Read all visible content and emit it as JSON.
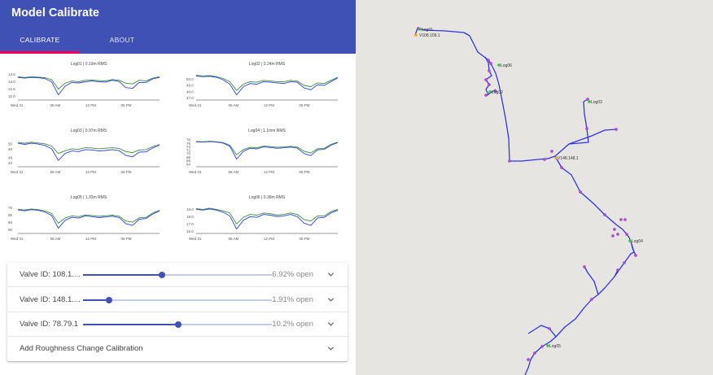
{
  "app": {
    "title": "Model Calibrate"
  },
  "tabs": [
    {
      "label": "CALIBRATE",
      "active": true
    },
    {
      "label": "ABOUT",
      "active": false
    }
  ],
  "colors": {
    "primary": "#3f51b5",
    "accent": "#f50057",
    "modelLine": "#2c3fe0",
    "loggerLine": "#3c8c3c",
    "pipe": "#3333e0",
    "junction": "#b84ce0",
    "loggerNode": "#34c240",
    "valveNode": "#f0a020"
  },
  "chart_data": [
    {
      "type": "line",
      "title": "Log01 | 0.19m RMS",
      "x_ticks": [
        "Wed 31",
        "06 AM",
        "12 PM",
        "06 PM"
      ],
      "y_ticks": [
        "13.5",
        "13.0",
        "12.5",
        "12.0"
      ],
      "ylim": [
        11.8,
        13.7
      ],
      "series": [
        {
          "values": [
            13.35,
            13.3,
            13.35,
            13.32,
            13.28,
            13.15,
            12.5,
            12.9,
            13.05,
            13.0,
            13.1,
            13.12,
            13.08,
            13.05,
            13.15,
            13.1,
            12.9,
            12.85,
            13.1,
            13.05,
            13.25,
            13.35
          ]
        },
        {
          "values": [
            13.3,
            13.25,
            13.3,
            13.28,
            13.22,
            13.0,
            12.1,
            12.7,
            12.95,
            12.92,
            13.0,
            13.05,
            13.0,
            12.98,
            13.1,
            13.02,
            12.6,
            12.55,
            12.95,
            12.95,
            13.2,
            13.3
          ]
        }
      ]
    },
    {
      "type": "line",
      "title": "Log02 | 0.24m RMS",
      "x_ticks": [
        "Wed 31",
        "06 AM",
        "12 PM",
        "06 PM"
      ],
      "y_ticks": [
        "50.0",
        "49.0",
        "48.0",
        "47.0"
      ],
      "ylim": [
        46.8,
        51.2
      ],
      "series": [
        {
          "values": [
            50.6,
            50.5,
            50.55,
            50.4,
            50.1,
            49.6,
            48.2,
            49.2,
            49.6,
            49.5,
            49.8,
            49.7,
            49.6,
            49.6,
            49.8,
            49.7,
            49.0,
            48.8,
            49.4,
            49.3,
            49.8,
            50.3
          ]
        },
        {
          "values": [
            50.5,
            50.4,
            50.45,
            50.3,
            49.9,
            49.2,
            47.5,
            48.8,
            49.3,
            49.2,
            49.6,
            49.5,
            49.4,
            49.3,
            49.6,
            49.5,
            48.6,
            48.3,
            49.1,
            49.0,
            49.6,
            50.2
          ]
        }
      ]
    },
    {
      "type": "line",
      "title": "Log03 | 0.97m RMS",
      "x_ticks": [
        "Wed 31",
        "06 AM",
        "12 PM",
        "06 PM"
      ],
      "y_ticks": [
        "50",
        "48",
        "45",
        "43"
      ],
      "ylim": [
        42,
        52
      ],
      "series": [
        {
          "values": [
            50.5,
            50.2,
            50.6,
            50.3,
            50.0,
            49.2,
            46.5,
            47.5,
            48.2,
            48.0,
            48.6,
            48.5,
            48.2,
            48.4,
            48.6,
            48.3,
            47.2,
            46.8,
            47.8,
            47.9,
            49.0,
            49.8
          ]
        },
        {
          "values": [
            50.2,
            49.8,
            50.2,
            49.9,
            49.4,
            48.2,
            44.0,
            46.5,
            47.4,
            47.2,
            47.9,
            47.8,
            47.4,
            47.6,
            47.9,
            47.5,
            45.8,
            45.3,
            47.0,
            47.1,
            48.5,
            49.5
          ]
        }
      ]
    },
    {
      "type": "line",
      "title": "Log04 | 1.1mm RMS",
      "x_ticks": [
        "Wed 31",
        "06 AM",
        "12 PM",
        "06 PM"
      ],
      "y_ticks": [
        "78",
        "76",
        "74",
        "72",
        "70",
        "68",
        "66",
        "64"
      ],
      "ylim": [
        63,
        79
      ],
      "series": [
        {
          "values": [
            77.2,
            77.0,
            77.3,
            77.0,
            76.5,
            75.0,
            69.5,
            72.5,
            73.8,
            73.5,
            74.5,
            74.2,
            73.8,
            74.0,
            74.4,
            73.9,
            71.5,
            70.5,
            73.0,
            73.2,
            75.5,
            76.8
          ]
        },
        {
          "values": [
            77.0,
            76.8,
            77.1,
            76.8,
            76.2,
            74.4,
            67.0,
            71.5,
            73.2,
            72.9,
            74.0,
            73.7,
            73.2,
            73.5,
            73.9,
            73.3,
            70.2,
            69.0,
            72.3,
            72.6,
            75.0,
            76.5
          ]
        }
      ]
    },
    {
      "type": "line",
      "title": "Log05 | 1.33m RMS",
      "x_ticks": [
        "Wed 31",
        "06 AM",
        "12 PM",
        "06 PM"
      ],
      "y_ticks": [
        "70",
        "65",
        "60",
        "55"
      ],
      "ylim": [
        53,
        72
      ],
      "series": [
        {
          "values": [
            69.0,
            68.6,
            69.2,
            68.8,
            68.0,
            66.2,
            59.5,
            63.0,
            64.5,
            64.0,
            65.2,
            64.8,
            64.2,
            64.6,
            65.0,
            64.3,
            61.0,
            60.2,
            63.2,
            63.5,
            66.5,
            68.3
          ]
        },
        {
          "values": [
            68.6,
            68.0,
            68.8,
            68.3,
            67.2,
            64.8,
            56.0,
            61.5,
            63.5,
            63.0,
            64.5,
            64.0,
            63.3,
            63.8,
            64.3,
            63.4,
            59.2,
            58.0,
            62.2,
            62.7,
            65.8,
            68.0
          ]
        }
      ]
    },
    {
      "type": "line",
      "title": "Log06 | 0.36m RMS",
      "x_ticks": [
        "Wed 31",
        "06 AM",
        "12 PM",
        "06 PM"
      ],
      "y_ticks": [
        "19.0",
        "18.0",
        "17.0",
        "16.0"
      ],
      "ylim": [
        15.8,
        19.6
      ],
      "series": [
        {
          "values": [
            19.1,
            19.0,
            19.15,
            19.0,
            18.8,
            18.5,
            17.0,
            17.9,
            18.3,
            18.2,
            18.5,
            18.4,
            18.2,
            18.3,
            18.5,
            18.3,
            17.6,
            17.4,
            18.1,
            18.1,
            18.7,
            19.0
          ]
        },
        {
          "values": [
            19.0,
            18.9,
            19.05,
            18.9,
            18.6,
            18.1,
            16.3,
            17.5,
            18.0,
            17.9,
            18.3,
            18.2,
            18.0,
            18.1,
            18.3,
            18.0,
            17.1,
            16.8,
            17.8,
            17.9,
            18.5,
            18.9
          ]
        }
      ]
    }
  ],
  "valves": [
    {
      "label": "Valve ID: 108.1....",
      "value_text": "6.92% open",
      "level": 0.42
    },
    {
      "label": "Valve ID: 148.1....",
      "value_text": "1.91% open",
      "level": 0.14
    },
    {
      "label": "Valve ID: 78.79.1",
      "value_text": "10.2% open",
      "level": 0.505
    }
  ],
  "roughness": {
    "label": "Add Roughness Change Calibration"
  },
  "map": {
    "labels": {
      "log01": "Log01",
      "v108": "V108.109.1",
      "log06": "Log06",
      "log02": "Log02",
      "log03": "Log03",
      "v148": "V148.148.1",
      "log04": "Log04",
      "log05": "Log05"
    }
  }
}
